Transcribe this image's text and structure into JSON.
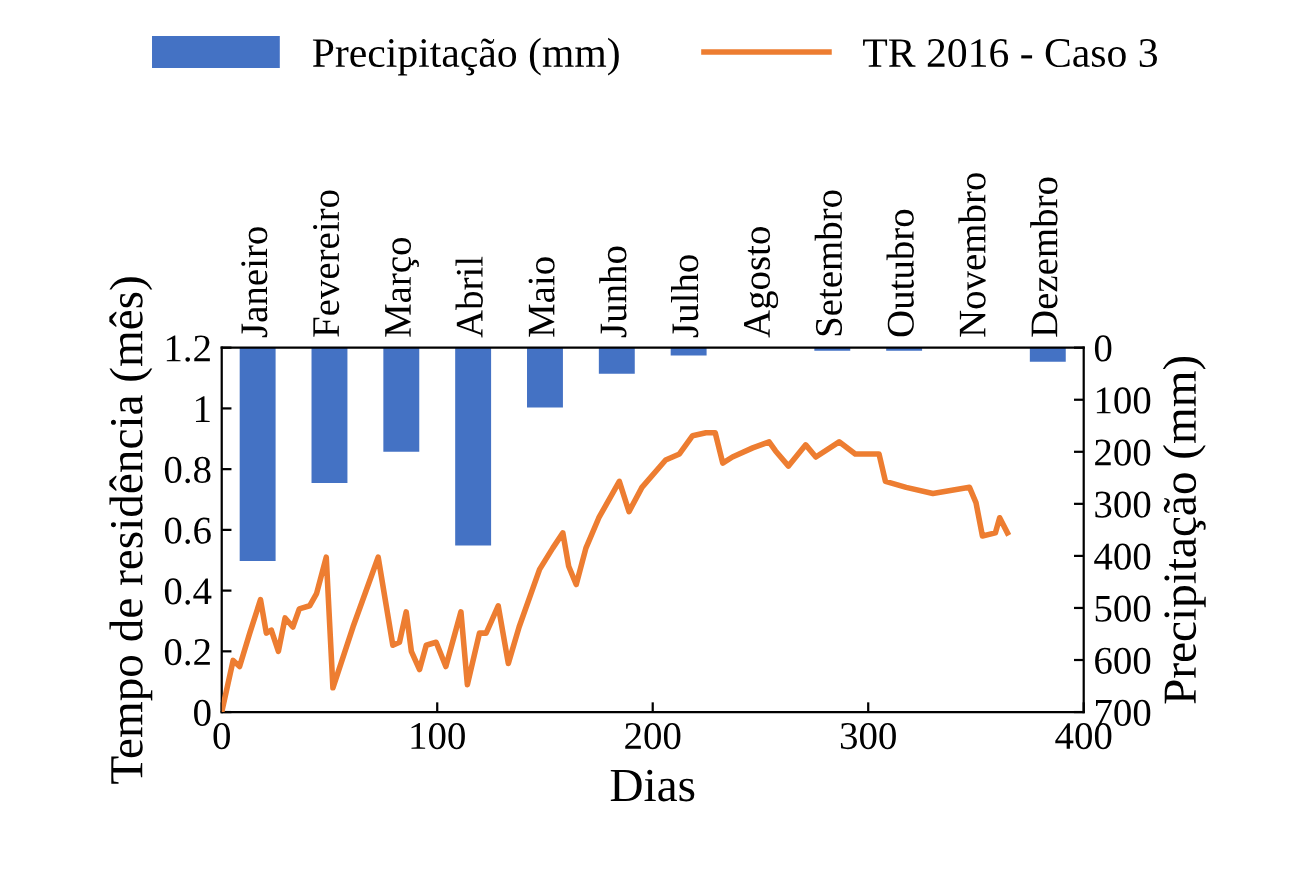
{
  "chart_data": [
    {
      "type": "bar",
      "categories": [
        "Janeiro",
        "Fevereiro",
        "Março",
        "Abril",
        "Maio",
        "Junho",
        "Julho",
        "Agosto",
        "Setembro",
        "Outubro",
        "Novembro",
        "Dezembro"
      ],
      "y2label": "Precipitação (mm)",
      "y2lim": [
        700,
        0
      ],
      "y2ticks": [
        0,
        100,
        200,
        300,
        400,
        500,
        600,
        700
      ],
      "grid": false,
      "legend": "top",
      "series": [
        {
          "name": "Precipitação (mm)",
          "axis": "y2",
          "color": "#4472c4",
          "values": [
            410,
            260,
            200,
            380,
            115,
            50,
            15,
            0,
            6,
            6,
            0,
            27
          ]
        }
      ]
    },
    {
      "type": "line",
      "xlabel": "Dias",
      "ylabel": "Tempo de residência (mês)",
      "xlim": [
        0,
        400
      ],
      "xticks": [
        0,
        100,
        200,
        300,
        400
      ],
      "ylim": [
        0,
        1.2
      ],
      "yticks": [
        {
          "value": 0,
          "label": "0"
        },
        {
          "value": 0.2,
          "label": "0.2"
        },
        {
          "value": 0.4,
          "label": "0.4"
        },
        {
          "value": 0.6,
          "label": "0.6"
        },
        {
          "value": 0.8,
          "label": "0.8"
        },
        {
          "value": 1,
          "label": "1"
        },
        {
          "value": 1.2,
          "label": "1.2"
        }
      ],
      "grid": false,
      "legend": "top",
      "series": [
        {
          "name": "TR 2016 - Caso 3",
          "color": "#ed7d31",
          "x": [
            0,
            5.3,
            8.3,
            13,
            18,
            20.7,
            23,
            26.3,
            29.4,
            33,
            36,
            40.8,
            44,
            48.5,
            51.6,
            60.9,
            72.6,
            79.4,
            82.5,
            85.6,
            88,
            91.8,
            94.9,
            99.5,
            104,
            111,
            114,
            119.6,
            122.7,
            128.3,
            133,
            138,
            147.5,
            153.6,
            158.3,
            161,
            164.5,
            169,
            175,
            184.5,
            189,
            195,
            206,
            212.4,
            218.5,
            224.7,
            229,
            232.5,
            237,
            246.4,
            254,
            257,
            263,
            271,
            275.7,
            286.5,
            294,
            305,
            308,
            317.6,
            330,
            347,
            350,
            353,
            359,
            361,
            364.6
          ],
          "values": [
            0,
            0.17,
            0.15,
            0.26,
            0.37,
            0.26,
            0.27,
            0.2,
            0.31,
            0.28,
            0.34,
            0.35,
            0.39,
            0.51,
            0.08,
            0.28,
            0.51,
            0.22,
            0.23,
            0.33,
            0.2,
            0.14,
            0.22,
            0.23,
            0.15,
            0.33,
            0.09,
            0.26,
            0.26,
            0.35,
            0.16,
            0.28,
            0.47,
            0.54,
            0.59,
            0.48,
            0.42,
            0.54,
            0.64,
            0.76,
            0.66,
            0.74,
            0.83,
            0.85,
            0.91,
            0.92,
            0.92,
            0.82,
            0.84,
            0.87,
            0.89,
            0.86,
            0.81,
            0.88,
            0.84,
            0.89,
            0.85,
            0.85,
            0.76,
            0.74,
            0.72,
            0.74,
            0.69,
            0.58,
            0.59,
            0.64,
            0.59
          ]
        }
      ]
    }
  ]
}
